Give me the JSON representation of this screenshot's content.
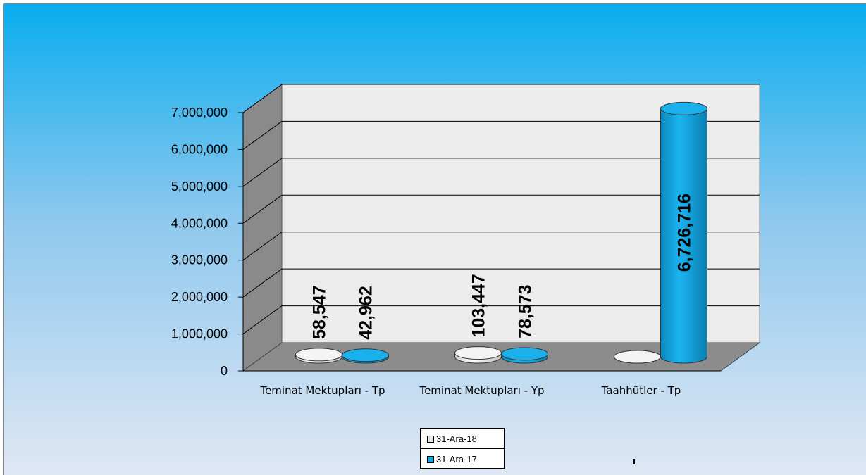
{
  "chart_data": {
    "type": "bar3d",
    "categories": [
      "Teminat Mektupları - Tp",
      "Teminat Mektupları - Yp",
      "Taahhütler - Tp"
    ],
    "series": [
      {
        "name": "31-Ara-18",
        "color": "#e6e6e6",
        "values": [
          58547,
          103447,
          0
        ],
        "value_labels": [
          "58,547",
          "103,447",
          null
        ]
      },
      {
        "name": "31-Ara-17",
        "color": "#14a5df",
        "values": [
          42962,
          78573,
          6726716
        ],
        "value_labels": [
          "42,962",
          "78,573",
          "6,726,716"
        ]
      }
    ],
    "ylim": [
      0,
      7000000
    ],
    "yticks": [
      0,
      {
        "value": 1000000,
        "label": "1,000,000"
      },
      {
        "value": 2000000,
        "label": "2,000,000"
      },
      {
        "value": 3000000,
        "label": "3,000,000"
      },
      {
        "value": 4000000,
        "label": "4,000,000"
      },
      {
        "value": 5000000,
        "label": "5,000,000"
      },
      {
        "value": 6000000,
        "label": "6,000,000"
      },
      {
        "value": 7000000,
        "label": "7,000,000"
      }
    ],
    "grid": true,
    "legend": "bottom"
  }
}
